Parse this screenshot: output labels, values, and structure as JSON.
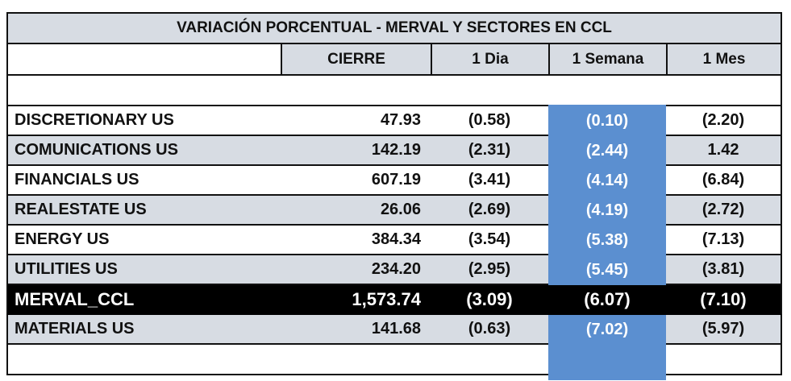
{
  "title": "VARIACIÓN PORCENTUAL  - MERVAL Y SECTORES EN CCL",
  "columns": [
    "",
    "CIERRE",
    "1 Dia",
    "1 Semana",
    "1 Mes"
  ],
  "colors": {
    "header_bg": "#d7dce3",
    "band_bg": "#d7dce3",
    "week_highlight": "#5b8fd0",
    "merval_bg": "#000000"
  },
  "rows": [
    {
      "name": "DISCRETIONARY US",
      "cierre": "47.93",
      "dia": "(0.58)",
      "semana": "(0.10)",
      "mes": "(2.20)",
      "style": "white"
    },
    {
      "name": "COMUNICATIONS US",
      "cierre": "142.19",
      "dia": "(2.31)",
      "semana": "(2.44)",
      "mes": "1.42",
      "style": "band"
    },
    {
      "name": "FINANCIALS US",
      "cierre": "607.19",
      "dia": "(3.41)",
      "semana": "(4.14)",
      "mes": "(6.84)",
      "style": "white"
    },
    {
      "name": "REALESTATE US",
      "cierre": "26.06",
      "dia": "(2.69)",
      "semana": "(4.19)",
      "mes": "(2.72)",
      "style": "band"
    },
    {
      "name": "ENERGY US",
      "cierre": "384.34",
      "dia": "(3.54)",
      "semana": "(5.38)",
      "mes": "(7.13)",
      "style": "white"
    },
    {
      "name": "UTILITIES US",
      "cierre": "234.20",
      "dia": "(2.95)",
      "semana": "(5.45)",
      "mes": "(3.81)",
      "style": "band"
    },
    {
      "name": "MERVAL_CCL",
      "cierre": "1,573.74",
      "dia": "(3.09)",
      "semana": "(6.07)",
      "mes": "(7.10)",
      "style": "merval"
    },
    {
      "name": "MATERIALS US",
      "cierre": "141.68",
      "dia": "(0.63)",
      "semana": "(7.02)",
      "mes": "(5.97)",
      "style": "band"
    }
  ]
}
